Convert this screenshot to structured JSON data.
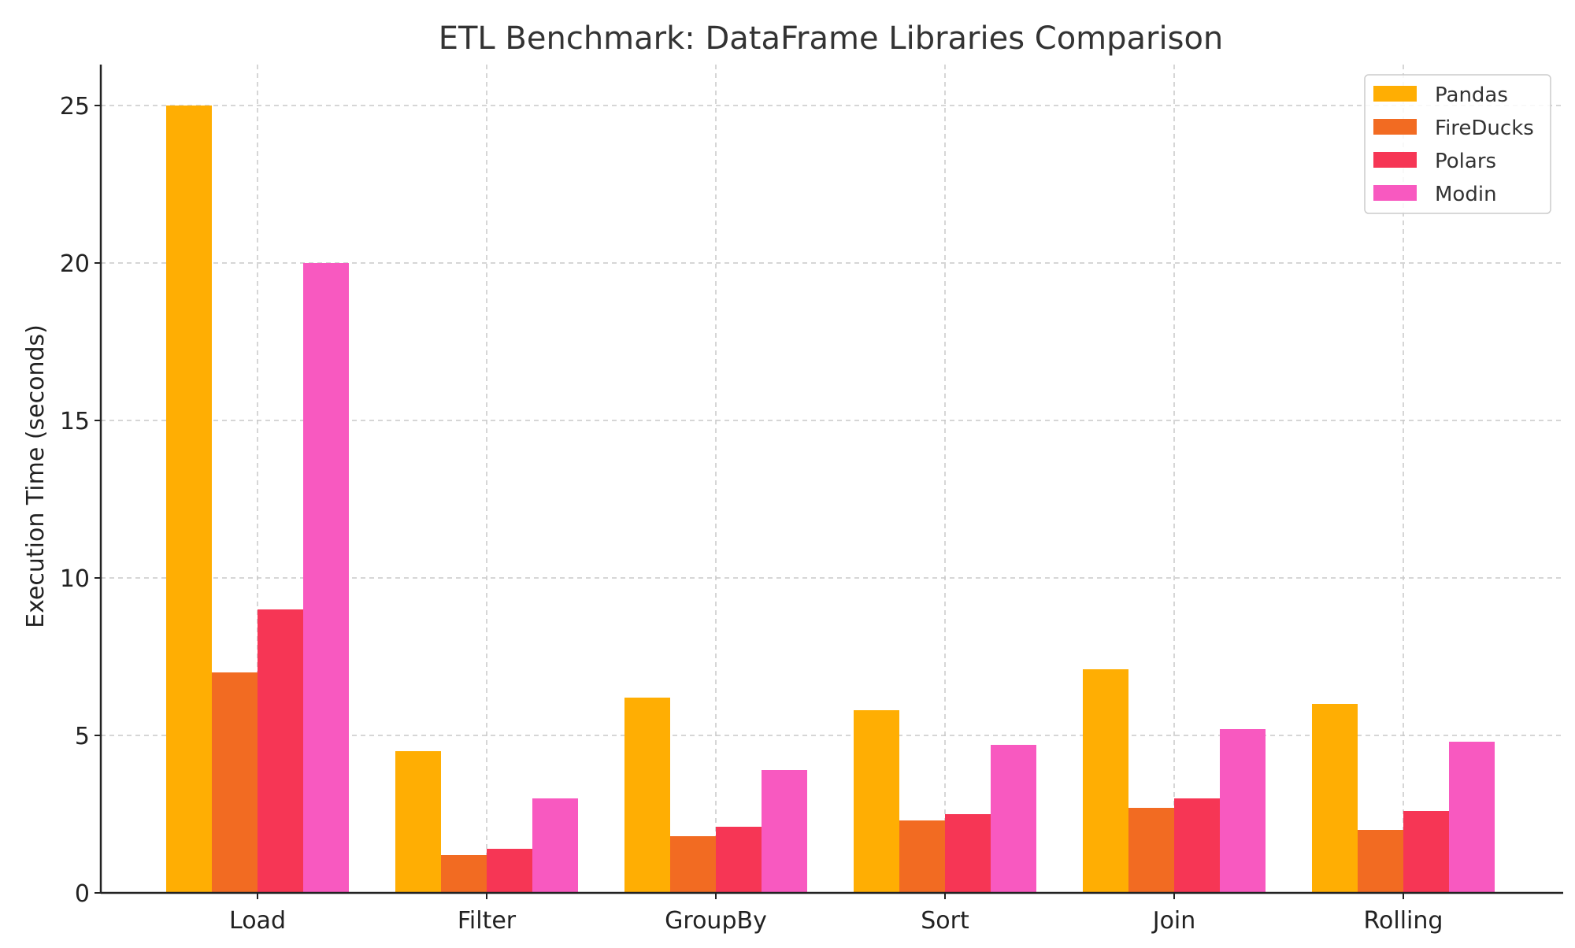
{
  "chart_data": {
    "type": "bar",
    "title": "ETL Benchmark: DataFrame Libraries Comparison",
    "xlabel": "",
    "ylabel": "Execution Time (seconds)",
    "categories": [
      "Load",
      "Filter",
      "GroupBy",
      "Sort",
      "Join",
      "Rolling"
    ],
    "ylim": [
      0,
      26.3
    ],
    "yticks": [
      0,
      5,
      10,
      15,
      20,
      25
    ],
    "grid": true,
    "legend_position": "top-right",
    "series": [
      {
        "name": "Pandas",
        "color": "#FFAE03",
        "values": [
          25,
          4.5,
          6.2,
          5.8,
          7.1,
          6.0
        ]
      },
      {
        "name": "FireDucks",
        "color": "#F26B22",
        "values": [
          7,
          1.2,
          1.8,
          2.3,
          2.7,
          2.0
        ]
      },
      {
        "name": "Polars",
        "color": "#F63655",
        "values": [
          9,
          1.4,
          2.1,
          2.5,
          3.0,
          2.6
        ]
      },
      {
        "name": "Modin",
        "color": "#F859C0",
        "values": [
          20,
          3.0,
          3.9,
          4.7,
          5.2,
          4.8
        ]
      }
    ]
  }
}
